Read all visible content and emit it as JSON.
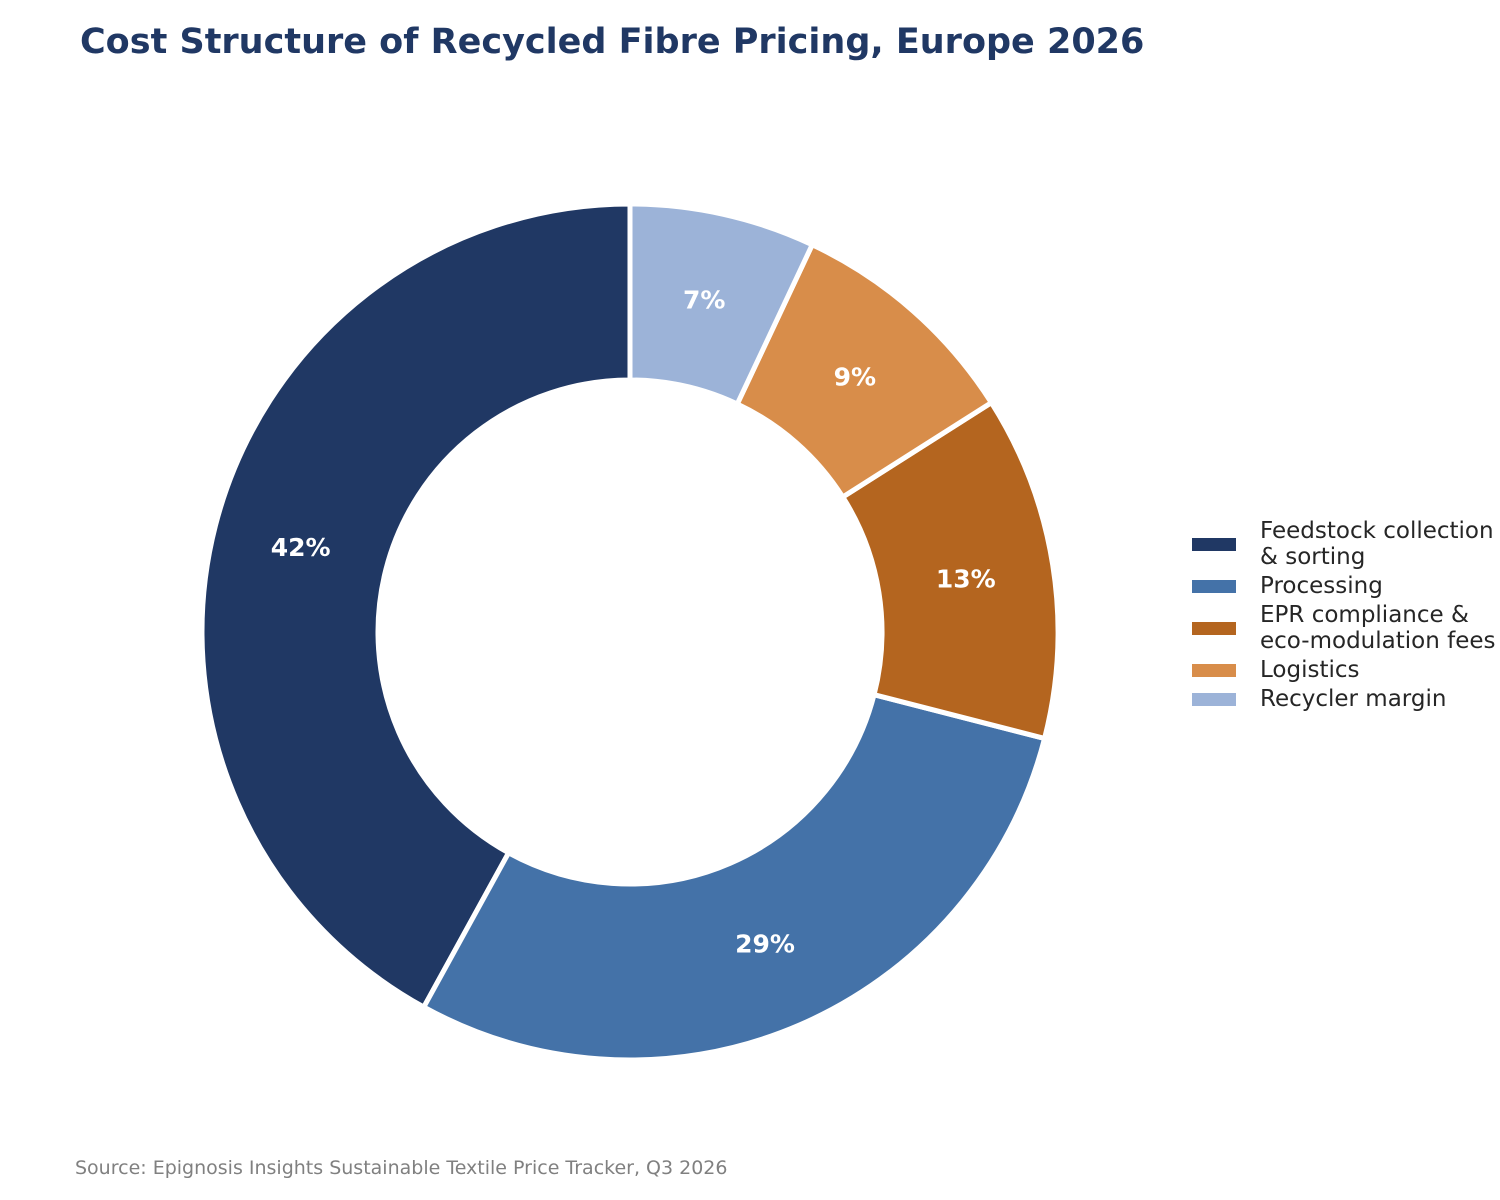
{
  "chart_data": {
    "type": "pie",
    "title": "Cost Structure of Recycled Fibre Pricing, Europe 2026",
    "categories": [
      "Feedstock collection\n& sorting",
      "Processing",
      "EPR compliance &\neco-modulation fees",
      "Logistics",
      "Recycler margin"
    ],
    "values": [
      42,
      29,
      13,
      9,
      7
    ],
    "value_labels": [
      "42%",
      "29%",
      "13%",
      "9%",
      "7%"
    ],
    "colors": [
      "#203864",
      "#4472A8",
      "#B4651F",
      "#D88D4A",
      "#9CB3D8"
    ],
    "donut": true,
    "legend_position": "right",
    "source": "Source: Epignosis Insights Sustainable Textile Price Tracker, Q3 2026"
  }
}
